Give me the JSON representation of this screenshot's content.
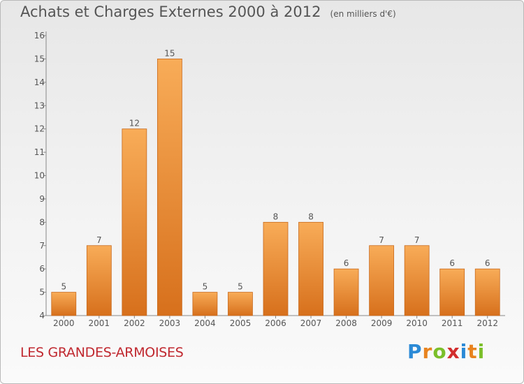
{
  "title": "Achats et Charges Externes 2000 à 2012",
  "subtitle": "(en milliers d'€)",
  "commune": "LES GRANDES-ARMOISES",
  "logo": {
    "letters": [
      "P",
      "r",
      "o",
      "x",
      "i",
      "t",
      "i"
    ],
    "colors": [
      "#2b8ad6",
      "#e8831f",
      "#7bbf2a",
      "#d22d2d",
      "#2b8ad6",
      "#e8831f",
      "#7bbf2a"
    ]
  },
  "colors": {
    "bar_top": "#f8ac58",
    "bar_bottom": "#d7701c",
    "bar_stroke": "#c86a1e",
    "text": "#555555",
    "commune": "#c0282f"
  },
  "chart_data": {
    "type": "bar",
    "categories": [
      "2000",
      "2001",
      "2002",
      "2003",
      "2004",
      "2005",
      "2006",
      "2007",
      "2008",
      "2009",
      "2010",
      "2011",
      "2012"
    ],
    "values": [
      5,
      7,
      12,
      15,
      5,
      5,
      8,
      8,
      6,
      7,
      7,
      6,
      6
    ],
    "ylim": [
      4,
      16
    ],
    "yticks": [
      "4",
      "5",
      "6",
      "7",
      "8",
      "9",
      "10",
      "11",
      "12",
      "13",
      "14",
      "15",
      "16"
    ],
    "grid": false,
    "data_labels": true
  }
}
